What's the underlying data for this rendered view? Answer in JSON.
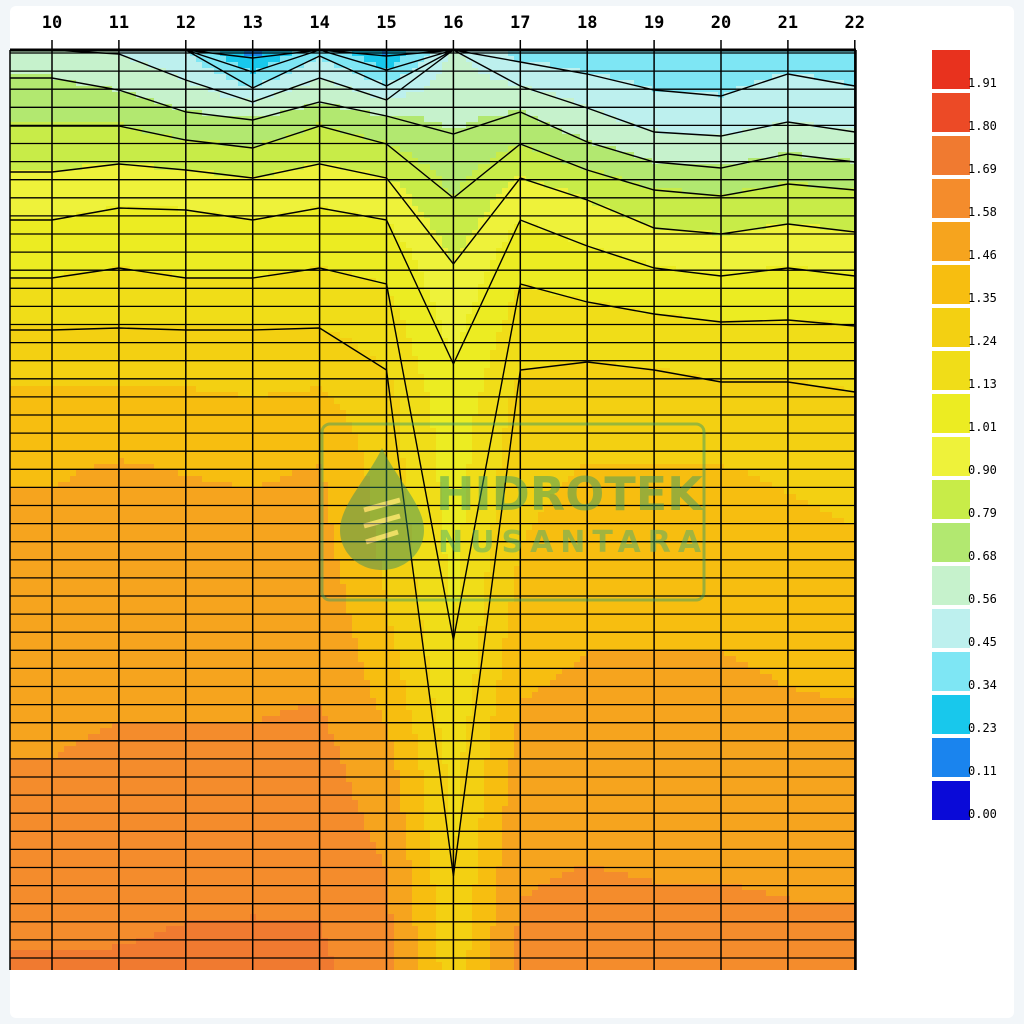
{
  "chart_data": {
    "type": "heatmap",
    "title": "",
    "xlabel": "",
    "ylabel": "",
    "x_ticks": [
      "10",
      "11",
      "12",
      "13",
      "14",
      "15",
      "16",
      "17",
      "18",
      "19",
      "20",
      "21",
      "22"
    ],
    "xlim": [
      10,
      22
    ],
    "colorbar": {
      "labels": [
        "1.91",
        "1.80",
        "1.69",
        "1.58",
        "1.46",
        "1.35",
        "1.24",
        "1.13",
        "1.01",
        "0.90",
        "0.79",
        "0.68",
        "0.56",
        "0.45",
        "0.34",
        "0.23",
        "0.11",
        "0.00"
      ],
      "colors": [
        "#e8321e",
        "#ec4a26",
        "#f07a30",
        "#f48c2c",
        "#f6a41e",
        "#f7be10",
        "#f3d012",
        "#f0dd18",
        "#ecec22",
        "#eef23a",
        "#c8ec48",
        "#b2e870",
        "#c6f2cc",
        "#bdf0ee",
        "#7ee6f4",
        "#18c8ec",
        "#1a84ee",
        "#0a0ad8"
      ]
    },
    "grid": true,
    "columns": [
      {
        "x": 10,
        "values": [
          0.62,
          0.78,
          0.95,
          1.1,
          1.25,
          1.38,
          1.45,
          1.5,
          1.52,
          1.55,
          1.58,
          1.62,
          1.66,
          1.7
        ]
      },
      {
        "x": 11,
        "values": [
          0.55,
          0.78,
          0.98,
          1.12,
          1.25,
          1.38,
          1.48,
          1.52,
          1.53,
          1.56,
          1.6,
          1.64,
          1.67,
          1.7
        ]
      },
      {
        "x": 12,
        "values": [
          0.45,
          0.72,
          0.98,
          1.1,
          1.25,
          1.38,
          1.46,
          1.5,
          1.53,
          1.56,
          1.6,
          1.64,
          1.68,
          1.71
        ]
      },
      {
        "x": 13,
        "values": [
          0.18,
          0.7,
          0.95,
          1.1,
          1.25,
          1.36,
          1.45,
          1.5,
          1.53,
          1.56,
          1.6,
          1.64,
          1.68,
          1.72
        ]
      },
      {
        "x": 14,
        "values": [
          0.42,
          0.78,
          0.98,
          1.12,
          1.25,
          1.38,
          1.47,
          1.5,
          1.54,
          1.57,
          1.62,
          1.65,
          1.68,
          1.71
        ]
      },
      {
        "x": 15,
        "values": [
          0.2,
          0.72,
          0.95,
          1.1,
          1.2,
          1.28,
          1.3,
          1.32,
          1.36,
          1.42,
          1.5,
          1.55,
          1.6,
          1.62
        ]
      },
      {
        "x": 16,
        "values": [
          0.58,
          0.66,
          0.78,
          0.9,
          0.98,
          1.05,
          1.08,
          1.1,
          1.12,
          1.15,
          1.2,
          1.22,
          1.25,
          1.28
        ]
      },
      {
        "x": 17,
        "values": [
          0.4,
          0.72,
          0.95,
          1.1,
          1.2,
          1.28,
          1.32,
          1.35,
          1.4,
          1.45,
          1.5,
          1.55,
          1.58,
          1.62
        ]
      },
      {
        "x": 18,
        "values": [
          0.38,
          0.6,
          0.88,
          1.05,
          1.2,
          1.3,
          1.36,
          1.4,
          1.44,
          1.48,
          1.52,
          1.56,
          1.6,
          1.63
        ]
      },
      {
        "x": 19,
        "values": [
          0.36,
          0.52,
          0.8,
          1.0,
          1.18,
          1.3,
          1.36,
          1.4,
          1.44,
          1.48,
          1.52,
          1.55,
          1.59,
          1.62
        ]
      },
      {
        "x": 20,
        "values": [
          0.36,
          0.5,
          0.78,
          0.98,
          1.16,
          1.28,
          1.36,
          1.4,
          1.44,
          1.48,
          1.51,
          1.55,
          1.59,
          1.62
        ]
      },
      {
        "x": 21,
        "values": [
          0.4,
          0.56,
          0.82,
          1.0,
          1.16,
          1.28,
          1.34,
          1.38,
          1.42,
          1.46,
          1.5,
          1.54,
          1.58,
          1.62
        ]
      },
      {
        "x": 22,
        "values": [
          0.38,
          0.52,
          0.8,
          0.98,
          1.15,
          1.26,
          1.32,
          1.36,
          1.4,
          1.45,
          1.5,
          1.54,
          1.58,
          1.61
        ]
      }
    ]
  },
  "watermark": {
    "line1": "HIDROTEK",
    "line2": "NUSANTARA"
  }
}
